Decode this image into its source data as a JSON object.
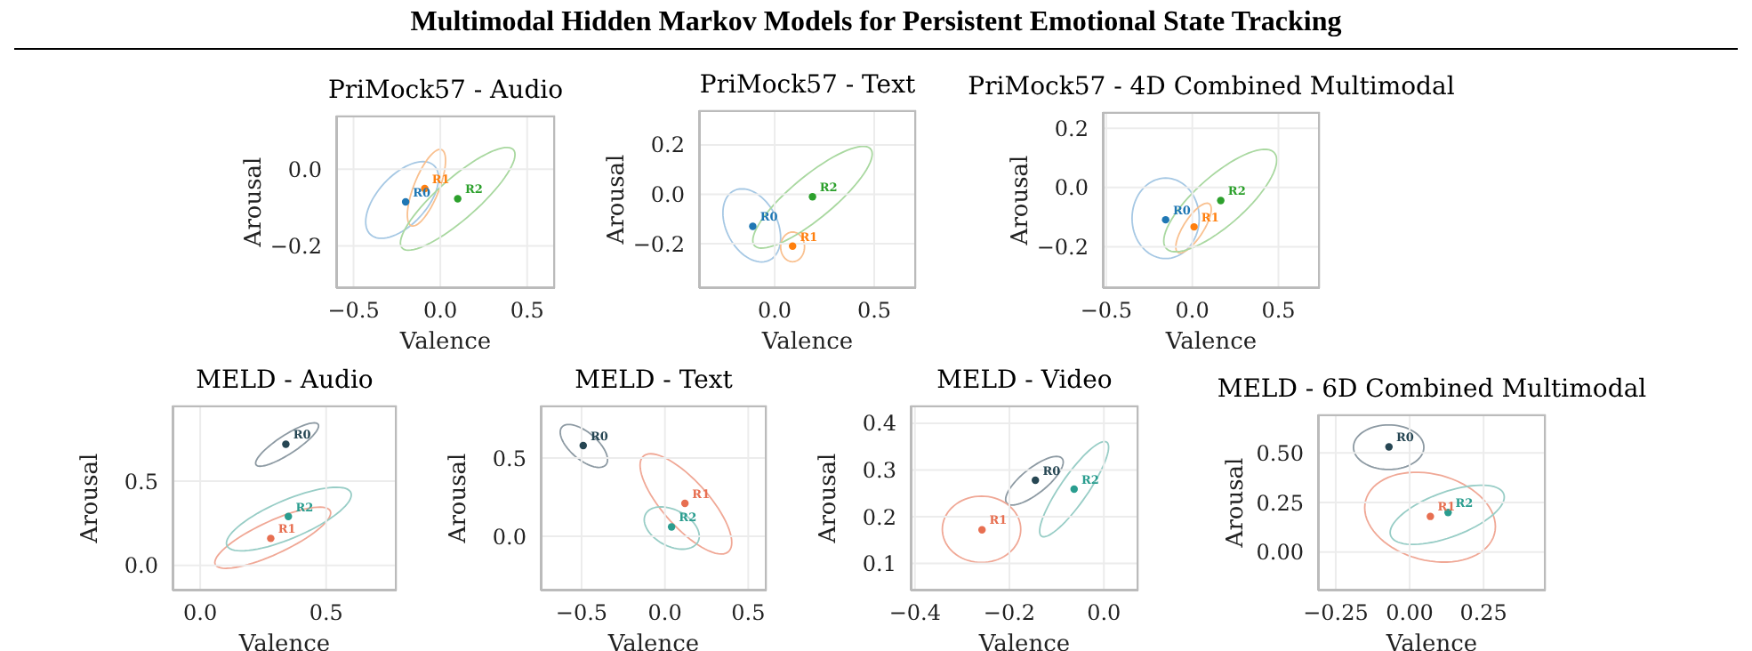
{
  "chart_data": [
    {
      "type": "scatter",
      "title": "PriMock57 - Audio",
      "xlabel": "Valence",
      "ylabel": "Arousal",
      "annotations": [
        "Multimodal Hidden Markov Models for Persistent Emotional State Tracking"
      ],
      "xlim": [
        -0.6,
        0.66
      ],
      "ylim": [
        -0.31,
        0.14
      ],
      "xticks": [
        {
          "value": -0.5,
          "label": "−0.5"
        },
        {
          "value": 0,
          "label": "0.0"
        },
        {
          "value": 0.5,
          "label": "0.5"
        }
      ],
      "yticks": [
        {
          "value": -0.2,
          "label": "−0.2"
        },
        {
          "value": 0,
          "label": "0.0"
        }
      ],
      "grid": true,
      "legend": false,
      "marker": "circle",
      "series": [
        {
          "name": "R0",
          "color": "#1f77b4",
          "x": [
            -0.2
          ],
          "values": [
            -0.085
          ]
        },
        {
          "name": "R1",
          "color": "#ff7f0e",
          "x": [
            -0.09
          ],
          "values": [
            -0.05
          ]
        },
        {
          "name": "R2",
          "color": "#2ca02c",
          "x": [
            0.1
          ],
          "values": [
            -0.077
          ]
        }
      ]
    },
    {
      "type": "scatter",
      "title": "PriMock57 - Text",
      "xlabel": "Valence",
      "ylabel": "Arousal",
      "xlim": [
        -0.38,
        0.71
      ],
      "ylim": [
        -0.38,
        0.34
      ],
      "xticks": [
        {
          "value": 0,
          "label": "0.0"
        },
        {
          "value": 0.5,
          "label": "0.5"
        }
      ],
      "yticks": [
        {
          "value": -0.2,
          "label": "−0.2"
        },
        {
          "value": 0,
          "label": "0.0"
        },
        {
          "value": 0.2,
          "label": "0.2"
        }
      ],
      "grid": true,
      "legend": false,
      "marker": "circle",
      "series": [
        {
          "name": "R0",
          "color": "#1f77b4",
          "x": [
            -0.11
          ],
          "values": [
            -0.13
          ]
        },
        {
          "name": "R1",
          "color": "#ff7f0e",
          "x": [
            0.09
          ],
          "values": [
            -0.21
          ]
        },
        {
          "name": "R2",
          "color": "#2ca02c",
          "x": [
            0.19
          ],
          "values": [
            -0.01
          ]
        }
      ]
    },
    {
      "type": "scatter",
      "title": "PriMock57 - 4D Combined Multimodal",
      "xlabel": "Valence",
      "ylabel": "Arousal",
      "xlim": [
        -0.52,
        0.74
      ],
      "ylim": [
        -0.34,
        0.255
      ],
      "xticks": [
        {
          "value": -0.5,
          "label": "−0.5"
        },
        {
          "value": 0,
          "label": "0.0"
        },
        {
          "value": 0.5,
          "label": "0.5"
        }
      ],
      "yticks": [
        {
          "value": -0.2,
          "label": "−0.2"
        },
        {
          "value": 0,
          "label": "0.0"
        },
        {
          "value": 0.2,
          "label": "0.2"
        }
      ],
      "grid": true,
      "legend": false,
      "marker": "circle",
      "series": [
        {
          "name": "R0",
          "color": "#1f77b4",
          "x": [
            -0.155
          ],
          "values": [
            -0.109
          ]
        },
        {
          "name": "R1",
          "color": "#ff7f0e",
          "x": [
            0.01
          ],
          "values": [
            -0.133
          ]
        },
        {
          "name": "R2",
          "color": "#2ca02c",
          "x": [
            0.165
          ],
          "values": [
            -0.044
          ]
        }
      ]
    },
    {
      "type": "scatter",
      "title": "MELD - Audio",
      "xlabel": "Valence",
      "ylabel": "Arousal",
      "xlim": [
        -0.11,
        0.78
      ],
      "ylim": [
        -0.15,
        0.95
      ],
      "xticks": [
        {
          "value": 0,
          "label": "0.0"
        },
        {
          "value": 0.5,
          "label": "0.5"
        }
      ],
      "yticks": [
        {
          "value": 0,
          "label": "0.0"
        },
        {
          "value": 0.5,
          "label": "0.5"
        }
      ],
      "grid": true,
      "legend": false,
      "marker": "circle",
      "series": [
        {
          "name": "R0",
          "color": "#264653",
          "x": [
            0.34
          ],
          "values": [
            0.72
          ]
        },
        {
          "name": "R1",
          "color": "#e76f51",
          "x": [
            0.28
          ],
          "values": [
            0.16
          ]
        },
        {
          "name": "R2",
          "color": "#2a9d8f",
          "x": [
            0.35
          ],
          "values": [
            0.29
          ]
        }
      ]
    },
    {
      "type": "scatter",
      "title": "MELD - Text",
      "xlabel": "Valence",
      "ylabel": "Arousal",
      "xlim": [
        -0.745,
        0.61
      ],
      "ylim": [
        -0.346,
        0.835
      ],
      "xticks": [
        {
          "value": -0.5,
          "label": "−0.5"
        },
        {
          "value": 0,
          "label": "0.0"
        },
        {
          "value": 0.5,
          "label": "0.5"
        }
      ],
      "yticks": [
        {
          "value": 0,
          "label": "0.0"
        },
        {
          "value": 0.5,
          "label": "0.5"
        }
      ],
      "grid": true,
      "legend": false,
      "marker": "circle",
      "series": [
        {
          "name": "R0",
          "color": "#264653",
          "x": [
            -0.49
          ],
          "values": [
            0.58
          ]
        },
        {
          "name": "R1",
          "color": "#e76f51",
          "x": [
            0.12
          ],
          "values": [
            0.21
          ]
        },
        {
          "name": "R2",
          "color": "#2a9d8f",
          "x": [
            0.04
          ],
          "values": [
            0.06
          ]
        }
      ]
    },
    {
      "type": "scatter",
      "title": "MELD - Video",
      "xlabel": "Valence",
      "ylabel": "Arousal",
      "xlim": [
        -0.409,
        0.073
      ],
      "ylim": [
        0.042,
        0.438
      ],
      "xticks": [
        {
          "value": -0.4,
          "label": "−0.4"
        },
        {
          "value": -0.2,
          "label": "−0.2"
        },
        {
          "value": 0,
          "label": "0.0"
        }
      ],
      "yticks": [
        0.1,
        0.2,
        0.3,
        0.4
      ],
      "grid": true,
      "legend": false,
      "marker": "circle",
      "series": [
        {
          "name": "R0",
          "color": "#264653",
          "x": [
            -0.145
          ],
          "values": [
            0.278
          ]
        },
        {
          "name": "R1",
          "color": "#e76f51",
          "x": [
            -0.258
          ],
          "values": [
            0.172
          ]
        },
        {
          "name": "R2",
          "color": "#2a9d8f",
          "x": [
            -0.063
          ],
          "values": [
            0.259
          ]
        }
      ]
    },
    {
      "type": "scatter",
      "title": "MELD - 6D Combined Multimodal",
      "xlabel": "Valence",
      "ylabel": "Arousal",
      "xlim": [
        -0.31,
        0.46
      ],
      "ylim": [
        -0.193,
        0.693
      ],
      "xticks": [
        {
          "value": -0.25,
          "label": "−0.25"
        },
        {
          "value": 0,
          "label": "0.00"
        },
        {
          "value": 0.25,
          "label": "0.25"
        }
      ],
      "yticks": [
        {
          "value": 0,
          "label": "0.00"
        },
        {
          "value": 0.25,
          "label": "0.25"
        },
        {
          "value": 0.5,
          "label": "0.50"
        }
      ],
      "grid": true,
      "legend": false,
      "marker": "circle",
      "series": [
        {
          "name": "R0",
          "color": "#264653",
          "x": [
            -0.07
          ],
          "values": [
            0.53
          ]
        },
        {
          "name": "R1",
          "color": "#e76f51",
          "x": [
            0.07
          ],
          "values": [
            0.18
          ]
        },
        {
          "name": "R2",
          "color": "#2a9d8f",
          "x": [
            0.13
          ],
          "values": [
            0.2
          ]
        }
      ]
    }
  ]
}
